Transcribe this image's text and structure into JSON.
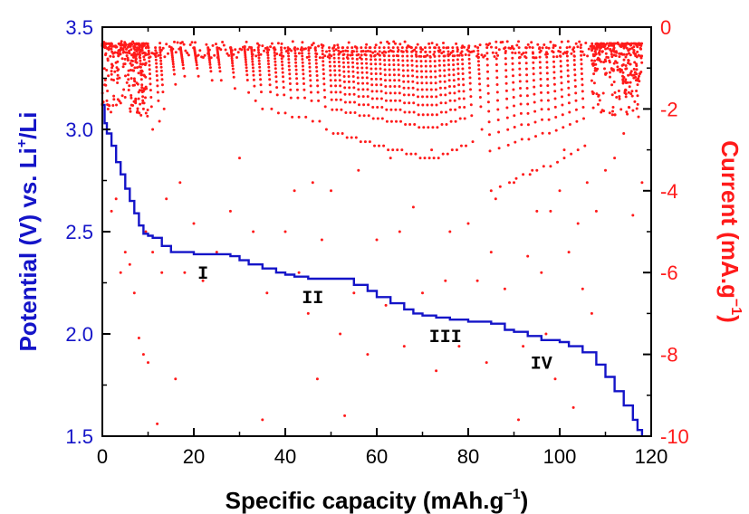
{
  "chart_data": {
    "type": "scatter",
    "xlabel": "Specific capacity (mAh.g",
    "xlabel_sup": "−1",
    "xlabel_end": ")",
    "ylabel_left_pre": "Potential (V) vs. Li",
    "ylabel_left_sup": "+",
    "ylabel_left_post": "/Li",
    "ylabel_right_pre": "Current (mA.g",
    "ylabel_right_sup": "−1",
    "ylabel_right_post": ")",
    "xlim": [
      0,
      120
    ],
    "ylim_left": [
      1.5,
      3.5
    ],
    "ylim_right": [
      -10,
      0
    ],
    "x_ticks": [
      "0",
      "20",
      "40",
      "60",
      "80",
      "100",
      "120"
    ],
    "y_left_ticks": [
      "1.5",
      "2.0",
      "2.5",
      "3.0",
      "3.5"
    ],
    "y_right_ticks": [
      "-10",
      "-8",
      "-6",
      "-4",
      "-2",
      "0"
    ],
    "region_labels": [
      {
        "text": "I",
        "x": 22,
        "y": 2.27
      },
      {
        "text": "II",
        "x": 46,
        "y": 2.15
      },
      {
        "text": "III",
        "x": 75,
        "y": 1.96
      },
      {
        "text": "IV",
        "x": 96,
        "y": 1.83
      }
    ],
    "colors": {
      "potential": "#1414c8",
      "current": "#ff1a1a",
      "axes": "#000000"
    },
    "series": [
      {
        "axis": "left",
        "style": "staircase-line",
        "points": [
          [
            0,
            3.12
          ],
          [
            0.5,
            3.03
          ],
          [
            1,
            2.98
          ],
          [
            2,
            2.92
          ],
          [
            3,
            2.84
          ],
          [
            4,
            2.78
          ],
          [
            5,
            2.71
          ],
          [
            6,
            2.65
          ],
          [
            7,
            2.59
          ],
          [
            8,
            2.53
          ],
          [
            9,
            2.49
          ],
          [
            10,
            2.48
          ],
          [
            11,
            2.47
          ],
          [
            12,
            2.47
          ],
          [
            13,
            2.43
          ],
          [
            15,
            2.4
          ],
          [
            20,
            2.39
          ],
          [
            25,
            2.39
          ],
          [
            28,
            2.38
          ],
          [
            30,
            2.36
          ],
          [
            32,
            2.34
          ],
          [
            35,
            2.32
          ],
          [
            38,
            2.3
          ],
          [
            40,
            2.29
          ],
          [
            42,
            2.28
          ],
          [
            45,
            2.27
          ],
          [
            50,
            2.27
          ],
          [
            55,
            2.24
          ],
          [
            58,
            2.21
          ],
          [
            60,
            2.18
          ],
          [
            63,
            2.15
          ],
          [
            66,
            2.12
          ],
          [
            68,
            2.1
          ],
          [
            70,
            2.09
          ],
          [
            73,
            2.08
          ],
          [
            76,
            2.07
          ],
          [
            80,
            2.06
          ],
          [
            85,
            2.05
          ],
          [
            88,
            2.02
          ],
          [
            90,
            2.01
          ],
          [
            93,
            1.99
          ],
          [
            96,
            1.97
          ],
          [
            100,
            1.96
          ],
          [
            102,
            1.94
          ],
          [
            105,
            1.91
          ],
          [
            108,
            1.85
          ],
          [
            110,
            1.79
          ],
          [
            112,
            1.72
          ],
          [
            114,
            1.65
          ],
          [
            116,
            1.58
          ],
          [
            117,
            1.53
          ],
          [
            118,
            1.5
          ]
        ]
      },
      {
        "axis": "right",
        "style": "scatter",
        "dense_cluster_ranges": [
          [
            0,
            10
          ],
          [
            107,
            118
          ]
        ],
        "pulse_starts": [
          9,
          11,
          12.5,
          13.5,
          16,
          18,
          21,
          24,
          26,
          29,
          32,
          33.5,
          35,
          37,
          38.5,
          40,
          41.5,
          43,
          44.5,
          46,
          47.5,
          49,
          50.5,
          51.5,
          52.5,
          53.5,
          54.5,
          55.5,
          56.5,
          57.5,
          58.5,
          59.5,
          60.5,
          61.5,
          62.5,
          63.5,
          64.5,
          65.5,
          66.5,
          67.5,
          68.5,
          69.5,
          70.5,
          71.5,
          72.5,
          73.5,
          74.5,
          75.5,
          76.5,
          77.5,
          78.5,
          79.5,
          81,
          83,
          85,
          87,
          89,
          90.5,
          92,
          93.5,
          95,
          96.5,
          98,
          99.5,
          101,
          102.5,
          104,
          105.5
        ],
        "pulse_depths": [
          -2.0,
          -2.5,
          -2.3,
          -2.0,
          -1.4,
          -1.2,
          -1.2,
          -1.3,
          -1.3,
          -1.5,
          -1.6,
          -1.8,
          -2.0,
          -2.0,
          -2.1,
          -2.1,
          -2.2,
          -2.2,
          -2.2,
          -2.3,
          -2.3,
          -2.5,
          -2.6,
          -2.6,
          -2.6,
          -2.7,
          -2.7,
          -2.7,
          -2.8,
          -2.8,
          -2.8,
          -2.9,
          -2.9,
          -2.9,
          -3.0,
          -3.0,
          -3.0,
          -3.0,
          -3.1,
          -3.1,
          -3.1,
          -3.2,
          -3.2,
          -3.2,
          -3.2,
          -3.2,
          -3.1,
          -3.1,
          -3.0,
          -3.0,
          -2.9,
          -2.9,
          -2.8,
          -2.5,
          -4.0,
          -3.9,
          -3.8,
          -3.7,
          -3.6,
          -3.6,
          -3.5,
          -3.4,
          -3.4,
          -3.3,
          -3.2,
          -3.1,
          -3.0,
          -2.9
        ],
        "scattered_points": [
          [
            1,
            -1.8
          ],
          [
            2,
            -4.5
          ],
          [
            3,
            -4.2
          ],
          [
            4,
            -6.0
          ],
          [
            5,
            -5.5
          ],
          [
            6,
            -5.8
          ],
          [
            7,
            -6.5
          ],
          [
            8,
            -7.6
          ],
          [
            9,
            -8.0
          ],
          [
            9.5,
            -5.0
          ],
          [
            10,
            -8.2
          ],
          [
            11,
            -5.5
          ],
          [
            12,
            -9.7
          ],
          [
            13,
            -6.0
          ],
          [
            14,
            -4.2
          ],
          [
            16,
            -8.6
          ],
          [
            17,
            -3.8
          ],
          [
            18,
            -6.0
          ],
          [
            20,
            -4.8
          ],
          [
            22,
            -6.2
          ],
          [
            25,
            -5.5
          ],
          [
            28,
            -4.5
          ],
          [
            30,
            -3.2
          ],
          [
            33,
            -5.0
          ],
          [
            35,
            -9.6
          ],
          [
            36,
            -6.5
          ],
          [
            40,
            -5.0
          ],
          [
            42,
            -4.0
          ],
          [
            43,
            -6.0
          ],
          [
            45,
            -7.0
          ],
          [
            46,
            -3.8
          ],
          [
            47,
            -8.6
          ],
          [
            48,
            -5.2
          ],
          [
            50,
            -4.0
          ],
          [
            52,
            -7.5
          ],
          [
            53,
            -9.5
          ],
          [
            55,
            -6.5
          ],
          [
            56,
            -3.5
          ],
          [
            58,
            -8.0
          ],
          [
            60,
            -5.2
          ],
          [
            62,
            -6.8
          ],
          [
            63,
            -3.2
          ],
          [
            65,
            -5.0
          ],
          [
            66,
            -7.8
          ],
          [
            68,
            -4.4
          ],
          [
            70,
            -6.5
          ],
          [
            72,
            -3.0
          ],
          [
            73,
            -8.4
          ],
          [
            75,
            -6.2
          ],
          [
            76,
            -5.0
          ],
          [
            78,
            -7.8
          ],
          [
            80,
            -4.8
          ],
          [
            82,
            -6.2
          ],
          [
            84,
            -8.2
          ],
          [
            85,
            -5.5
          ],
          [
            86,
            -4.2
          ],
          [
            88,
            -6.4
          ],
          [
            90,
            -3.8
          ],
          [
            91,
            -9.6
          ],
          [
            92,
            -7.8
          ],
          [
            93,
            -5.6
          ],
          [
            94,
            -3.5
          ],
          [
            95,
            -4.5
          ],
          [
            96,
            -6.0
          ],
          [
            97,
            -7.5
          ],
          [
            98,
            -4.5
          ],
          [
            99,
            -8.6
          ],
          [
            100,
            -4.0
          ],
          [
            101,
            -3.0
          ],
          [
            102,
            -5.5
          ],
          [
            103,
            -9.3
          ],
          [
            104,
            -4.8
          ],
          [
            105,
            -6.4
          ],
          [
            106,
            -3.8
          ],
          [
            107,
            -7.0
          ],
          [
            108,
            -4.5
          ],
          [
            110,
            -3.5
          ],
          [
            112,
            -3.2
          ],
          [
            114,
            -2.6
          ],
          [
            116,
            -4.6
          ],
          [
            118,
            -3.8
          ]
        ]
      }
    ]
  }
}
